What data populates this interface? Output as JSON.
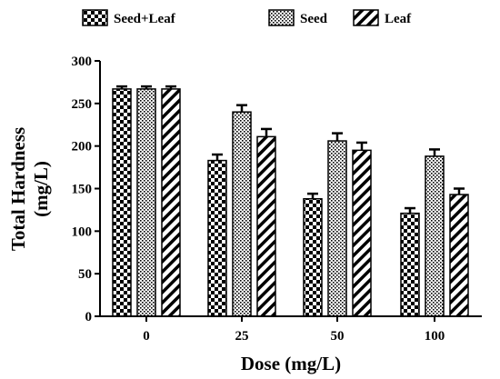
{
  "chart_data": {
    "type": "bar",
    "title": "",
    "xlabel": "Dose (mg/L)",
    "ylabel_line1": "Total Hardness",
    "ylabel_line2": "(mg/L)",
    "categories": [
      "0",
      "25",
      "50",
      "100"
    ],
    "ylim": [
      0,
      300
    ],
    "yticks": [
      0,
      50,
      100,
      150,
      200,
      250,
      300
    ],
    "grid": false,
    "legend_position": "top",
    "error_bars": true,
    "series": [
      {
        "name": "Seed+Leaf",
        "pattern": "checker",
        "values": [
          267,
          183,
          138,
          121
        ],
        "errors": [
          3,
          7,
          6,
          6
        ]
      },
      {
        "name": "Seed",
        "pattern": "dots",
        "values": [
          267,
          240,
          206,
          188
        ],
        "errors": [
          3,
          8,
          9,
          8
        ]
      },
      {
        "name": "Leaf",
        "pattern": "diagonal",
        "values": [
          267,
          211,
          195,
          143
        ],
        "errors": [
          3,
          9,
          9,
          7
        ]
      }
    ],
    "colors": {
      "ink": "#000000",
      "background": "#ffffff"
    }
  }
}
